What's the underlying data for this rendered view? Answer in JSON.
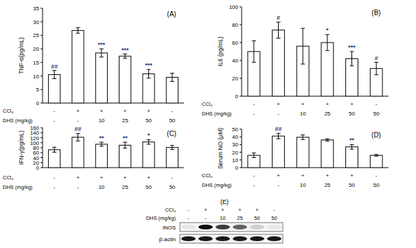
{
  "chart_data": [
    {
      "type": "bar",
      "title": "(A)",
      "y_label": "TNF-α(pg/mL)",
      "categories": [
        null,
        null,
        null,
        null,
        null,
        null
      ],
      "values": [
        10.5,
        26.8,
        18.5,
        17.3,
        10.8,
        9.5
      ],
      "errors": [
        1.5,
        1.0,
        1.5,
        0.8,
        1.6,
        1.5
      ],
      "annotations": [
        "##",
        null,
        "***",
        "***",
        "***",
        null
      ],
      "conditions": [
        {
          "name": "CCl₄",
          "values": [
            "-",
            "+",
            "+",
            "+",
            "+",
            "-"
          ]
        },
        {
          "name": "DHS (mg/kg)",
          "values": [
            "-",
            "-",
            "10",
            "25",
            "50",
            "50"
          ]
        }
      ],
      "color": "#ffffff",
      "ylim": [
        0,
        35
      ],
      "yticks": [
        0,
        5,
        10,
        15,
        20,
        25,
        30,
        35
      ],
      "grid": false
    },
    {
      "type": "bar",
      "title": "(B)",
      "y_label": "IL6 (pg/mL)",
      "categories": [
        null,
        null,
        null,
        null,
        null,
        null
      ],
      "values": [
        50,
        74,
        56,
        60,
        42,
        31
      ],
      "errors": [
        12,
        9,
        20,
        9,
        8,
        7
      ],
      "annotations": [
        null,
        "#",
        null,
        "*",
        "***",
        "#"
      ],
      "conditions": [
        {
          "name": "CCl₄",
          "values": [
            "-",
            "+",
            "+",
            "+",
            "+",
            "-"
          ]
        },
        {
          "name": "DHS (mg/kg)",
          "values": [
            "-",
            "-",
            "10",
            "25",
            "50",
            "50"
          ]
        }
      ],
      "color": "#ffffff",
      "ylim": [
        0,
        100
      ],
      "yticks": [
        0,
        20,
        40,
        60,
        80,
        100
      ],
      "grid": false
    },
    {
      "type": "bar",
      "title": "(C)",
      "y_label": "IFN-γ(pg/mL)",
      "categories": [
        null,
        null,
        null,
        null,
        null,
        null
      ],
      "values": [
        72,
        122,
        94,
        90,
        103,
        81
      ],
      "errors": [
        10,
        15,
        8,
        12,
        9,
        8
      ],
      "annotations": [
        null,
        "##",
        "**",
        "**",
        "*",
        null
      ],
      "conditions": [
        {
          "name": "CCl₄",
          "values": [
            "-",
            "+",
            "+",
            "+",
            "+",
            "-"
          ]
        },
        {
          "name": "DHS (mg/kg)",
          "values": [
            "-",
            "-",
            "10",
            "25",
            "50",
            "50"
          ]
        }
      ],
      "color": "#ffffff",
      "ylim": [
        0,
        160
      ],
      "yticks": [
        0,
        20,
        40,
        60,
        80,
        100,
        120,
        140,
        160
      ],
      "grid": false
    },
    {
      "type": "bar",
      "title": "(D)",
      "y_label": "Serum NO (μM)",
      "categories": [
        null,
        null,
        null,
        null,
        null,
        null
      ],
      "values": [
        16,
        41,
        39.5,
        36,
        27,
        16
      ],
      "errors": [
        3,
        3.5,
        3,
        1.5,
        3,
        1
      ],
      "annotations": [
        null,
        "##",
        null,
        null,
        "**",
        null
      ],
      "conditions": [
        {
          "name": "CCl₄",
          "values": [
            "-",
            "+",
            "+",
            "+",
            "+",
            "-"
          ]
        },
        {
          "name": "DHS (mg/kg)",
          "values": [
            "-",
            "-",
            "10",
            "25",
            "50",
            "50"
          ]
        }
      ],
      "color": "#ffffff",
      "ylim": [
        0,
        50
      ],
      "yticks": [
        0,
        10,
        20,
        30,
        40,
        50
      ],
      "grid": false
    }
  ],
  "blot": {
    "label": "(E)",
    "conditions": [
      {
        "name": "CCl₄",
        "values": [
          "-",
          "+",
          "+",
          "+",
          "+",
          "-"
        ]
      },
      {
        "name": "DHS (mg/kg)",
        "values": [
          "-",
          "-",
          "10",
          "25",
          "50",
          "50"
        ]
      }
    ],
    "bands": [
      {
        "name": "iNOS",
        "intensity": [
          0.05,
          0.95,
          0.75,
          0.6,
          0.15,
          0.05
        ]
      },
      {
        "name": "β-actin",
        "intensity": [
          0.9,
          0.9,
          0.9,
          0.9,
          0.9,
          0.9
        ]
      }
    ]
  }
}
